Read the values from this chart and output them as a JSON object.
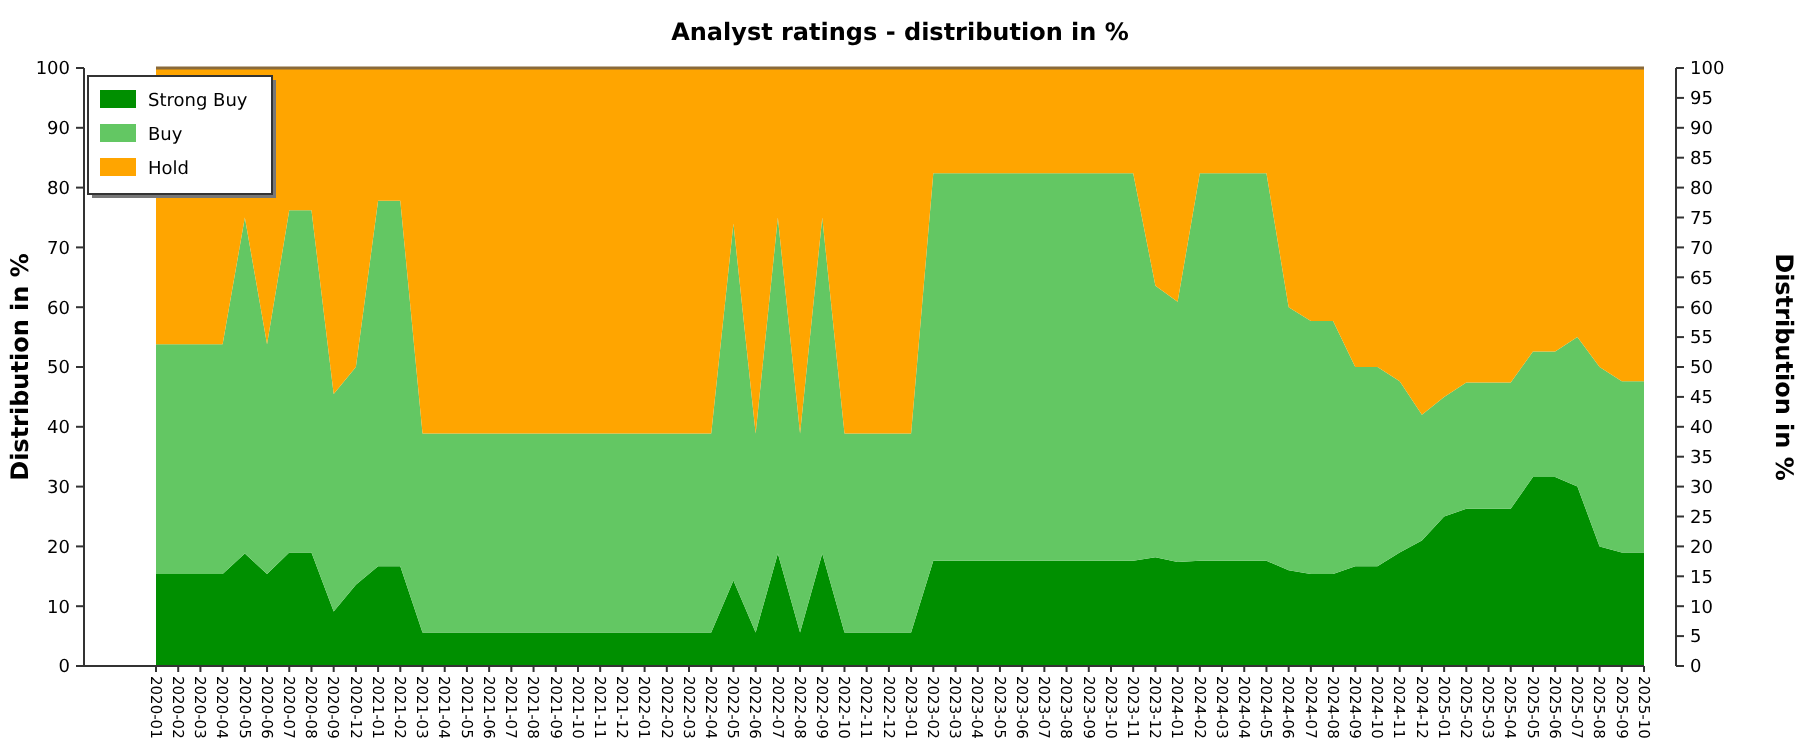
{
  "chart_data": {
    "type": "area",
    "stacked": true,
    "title": "Analyst ratings - distribution in %",
    "ylabel": "Distribution in %",
    "y2label": "Distribution in %",
    "categories": [
      "2020-01",
      "2020-02",
      "2020-03",
      "2020-04",
      "2020-05",
      "2020-06",
      "2020-07",
      "2020-08",
      "2020-09",
      "2020-12",
      "2021-01",
      "2021-02",
      "2021-03",
      "2021-04",
      "2021-05",
      "2021-06",
      "2021-07",
      "2021-08",
      "2021-09",
      "2021-10",
      "2021-11",
      "2021-12",
      "2022-01",
      "2022-02",
      "2022-03",
      "2022-04",
      "2022-05",
      "2022-06",
      "2022-07",
      "2022-08",
      "2022-09",
      "2022-10",
      "2022-11",
      "2022-12",
      "2023-01",
      "2023-02",
      "2023-03",
      "2023-04",
      "2023-05",
      "2023-06",
      "2023-07",
      "2023-08",
      "2023-09",
      "2023-10",
      "2023-11",
      "2023-12",
      "2024-01",
      "2024-02",
      "2024-03",
      "2024-04",
      "2024-05",
      "2024-06",
      "2024-07",
      "2024-08",
      "2024-09",
      "2024-10",
      "2024-11",
      "2024-12",
      "2025-01",
      "2025-02",
      "2025-03",
      "2025-04",
      "2025-05",
      "2025-06",
      "2025-07",
      "2025-08",
      "2025-09",
      "2025-10"
    ],
    "series": [
      {
        "name": "Strong Buy",
        "color": "#008f00",
        "values": [
          15.4,
          15.4,
          15.4,
          15.4,
          18.8,
          15.4,
          19,
          19,
          9.1,
          13.6,
          16.7,
          16.7,
          5.6,
          5.6,
          5.6,
          5.6,
          5.6,
          5.6,
          5.6,
          5.6,
          5.6,
          5.6,
          5.6,
          5.6,
          5.6,
          5.6,
          14.3,
          5.6,
          18.8,
          5.6,
          18.8,
          5.6,
          5.6,
          5.6,
          5.6,
          17.6,
          17.6,
          17.6,
          17.6,
          17.6,
          17.6,
          17.6,
          17.6,
          17.6,
          17.6,
          18.2,
          17.4,
          17.6,
          17.6,
          17.6,
          17.6,
          16,
          15.4,
          15.4,
          16.7,
          16.7,
          19,
          21,
          25,
          26.3,
          26.3,
          26.3,
          31.6,
          31.6,
          30,
          20,
          19,
          19
        ]
      },
      {
        "name": "Buy",
        "color": "#63c763",
        "values": [
          38.4,
          38.4,
          38.4,
          38.4,
          56.2,
          38.4,
          57.2,
          57.2,
          36.4,
          36.4,
          61.1,
          61.1,
          33.3,
          33.3,
          33.3,
          33.3,
          33.3,
          33.3,
          33.3,
          33.3,
          33.3,
          33.3,
          33.3,
          33.3,
          33.3,
          33.3,
          59.7,
          33.3,
          56.2,
          33.3,
          56.2,
          33.3,
          33.3,
          33.3,
          33.3,
          64.8,
          64.8,
          64.8,
          64.8,
          64.8,
          64.8,
          64.8,
          64.8,
          64.8,
          64.8,
          45.4,
          43.5,
          64.8,
          64.8,
          64.8,
          64.8,
          44,
          42.3,
          42.3,
          33.3,
          33.3,
          28.6,
          21,
          20,
          21.1,
          21.1,
          21.1,
          21,
          21,
          25,
          30,
          28.6,
          28.6
        ]
      },
      {
        "name": "Hold",
        "color": "#ffa500",
        "values": [
          46.2,
          46.2,
          46.2,
          46.2,
          25,
          46.2,
          23.8,
          23.8,
          54.5,
          50,
          22.2,
          22.2,
          61.1,
          61.1,
          61.1,
          61.1,
          61.1,
          61.1,
          61.1,
          61.1,
          61.1,
          61.1,
          61.1,
          61.1,
          61.1,
          61.1,
          26,
          61.1,
          25,
          61.1,
          25,
          61.1,
          61.1,
          61.1,
          61.1,
          17.6,
          17.6,
          17.6,
          17.6,
          17.6,
          17.6,
          17.6,
          17.6,
          17.6,
          17.6,
          36.4,
          39.1,
          17.6,
          17.6,
          17.6,
          17.6,
          40,
          42.3,
          42.3,
          50,
          50,
          52.4,
          58,
          55,
          52.6,
          52.6,
          52.6,
          47.4,
          47.4,
          45,
          50,
          52.4,
          52.4
        ]
      }
    ],
    "ylim": [
      0,
      100
    ],
    "yticks": [
      0,
      10,
      20,
      30,
      40,
      50,
      60,
      70,
      80,
      90,
      100
    ],
    "y2lim": [
      0,
      100
    ],
    "y2ticks": [
      0,
      5,
      10,
      15,
      20,
      25,
      30,
      35,
      40,
      45,
      50,
      55,
      60,
      65,
      70,
      75,
      80,
      85,
      90,
      95,
      100
    ],
    "grid": "y",
    "legend": "top left"
  }
}
